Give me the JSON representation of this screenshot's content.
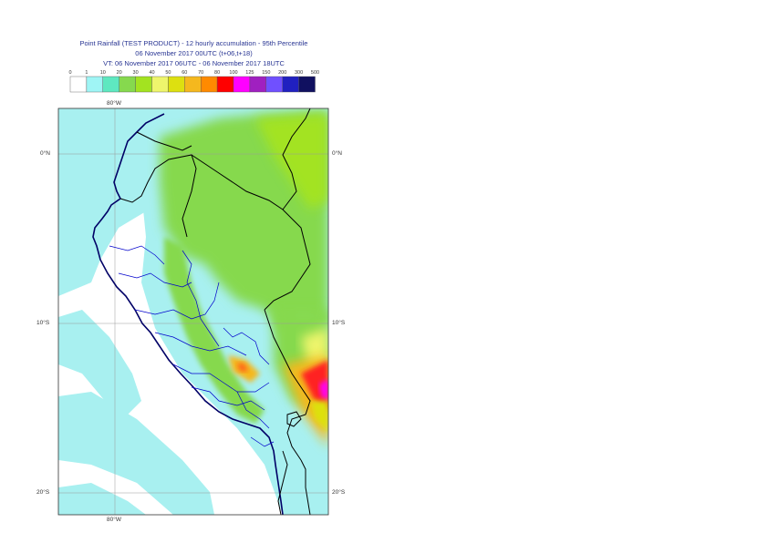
{
  "title": {
    "line1": "Point Rainfall (TEST PRODUCT) - 12 hourly accumulation - 95th Percentile",
    "line2": "06 November 2017 00UTC (t+06,t+18)",
    "line3": "VT: 06 November 2017 06UTC - 06 November 2017 18UTC"
  },
  "legend": {
    "ticks": [
      "0",
      "1",
      "10",
      "20",
      "30",
      "40",
      "50",
      "60",
      "70",
      "80",
      "100",
      "125",
      "150",
      "200",
      "300",
      "500"
    ],
    "colors": [
      "#ffffff",
      "#9ff5f5",
      "#5ee8c0",
      "#86d94e",
      "#a3e320",
      "#eef56c",
      "#dde010",
      "#f5b81e",
      "#ff8a00",
      "#ff0000",
      "#ff00ff",
      "#a020c0",
      "#7050ff",
      "#2020c0",
      "#101060"
    ]
  },
  "map": {
    "lon_labels": {
      "top": "80°W",
      "bottom": "80°W"
    },
    "lat_labels": {
      "lat0": "0°N",
      "lat10": "10°S",
      "lat20": "20°S"
    },
    "lon_range": [
      -86,
      -69.5
    ],
    "lat_range": [
      3,
      -21
    ],
    "grid_lons": [
      -80
    ],
    "grid_lats": [
      0,
      -10,
      -20
    ],
    "background_color": "#a8f0f0"
  }
}
